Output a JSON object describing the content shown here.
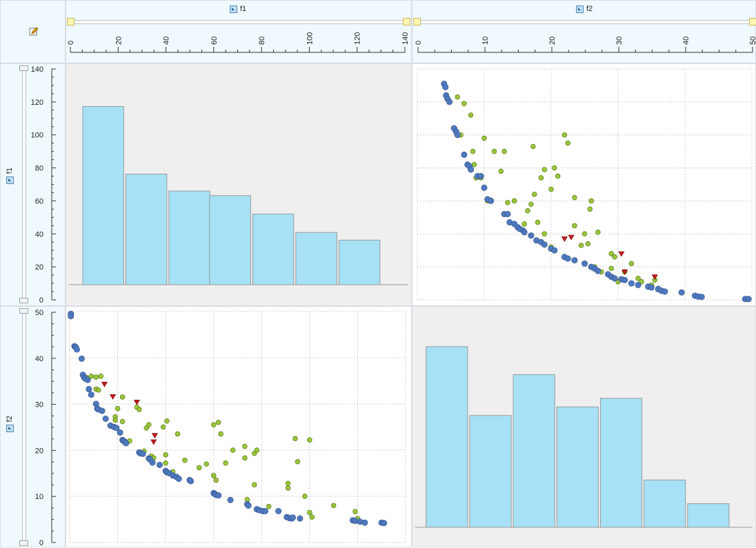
{
  "variables": [
    "f1",
    "f2"
  ],
  "headers": {
    "col1": "f1",
    "col2": "f2",
    "row1": "f1",
    "row2": "f2"
  },
  "icons": {
    "corner": "edit-pencil-icon",
    "variable": "variable-icon"
  },
  "colors": {
    "bar_fill": "#a6e1f5",
    "bar_stroke": "#9a9a9a",
    "blue": "#4f79be",
    "green": "#99c63a",
    "red": "#c02020",
    "hist_bg": "#efefef"
  },
  "chart_data": [
    {
      "type": "bar",
      "panel": "f1 histogram",
      "x": [
        4,
        22,
        40,
        57,
        75,
        93,
        111
      ],
      "values": [
        116,
        72,
        61,
        58,
        46,
        34,
        29
      ],
      "xlim": [
        0,
        140
      ],
      "ylim": [
        0,
        140
      ],
      "yticks": [
        0,
        20,
        40,
        60,
        80,
        100,
        120,
        140
      ],
      "grid": false
    },
    {
      "type": "bar",
      "panel": "f2 histogram",
      "x": [
        1,
        7.5,
        14,
        20.5,
        27,
        33.5,
        40
      ],
      "values": [
        42,
        26,
        35.5,
        28,
        30,
        11,
        5.5
      ],
      "xlim": [
        0,
        50
      ],
      "ylim": [
        0,
        50
      ],
      "yticks": [
        0,
        10,
        20,
        30,
        40,
        50
      ],
      "grid": false
    },
    {
      "type": "scatter",
      "panel": "f1 vs f2",
      "xlim": [
        0,
        140
      ],
      "ylim": [
        0,
        50
      ],
      "xticks": [
        0,
        20,
        40,
        60,
        80,
        100,
        120,
        140
      ],
      "yticks": [
        0,
        10,
        20,
        30,
        40,
        50
      ],
      "grid": true,
      "series": [
        {
          "color": "blue",
          "marker": "circle",
          "points": [
            [
              0.5,
              49.5
            ],
            [
              0.5,
              49
            ],
            [
              2,
              42.5
            ],
            [
              2.5,
              42.3
            ],
            [
              3,
              41.8
            ],
            [
              5,
              39.8
            ],
            [
              5.5,
              36.3
            ],
            [
              6,
              35.8
            ],
            [
              6.5,
              35.5
            ],
            [
              7.5,
              35.2
            ],
            [
              8,
              33.2
            ],
            [
              9,
              32
            ],
            [
              11,
              30
            ],
            [
              11.5,
              29
            ],
            [
              12,
              28.8
            ],
            [
              13.5,
              28.5
            ],
            [
              15,
              26.8
            ],
            [
              17,
              25.3
            ],
            [
              18.5,
              25
            ],
            [
              19.5,
              24.8
            ],
            [
              21,
              23.8
            ],
            [
              22,
              22.2
            ],
            [
              22.5,
              22
            ],
            [
              23,
              21.8
            ],
            [
              23.5,
              21.5
            ],
            [
              29,
              19.5
            ],
            [
              29.5,
              19.3
            ],
            [
              30.5,
              19.2
            ],
            [
              33,
              18.2
            ],
            [
              33.5,
              18
            ],
            [
              34.5,
              17.3
            ],
            [
              37.5,
              16.8
            ],
            [
              40,
              15.5
            ],
            [
              40.5,
              15.2
            ],
            [
              41.5,
              15
            ],
            [
              43,
              14.5
            ],
            [
              44.5,
              14.2
            ],
            [
              45.5,
              13.8
            ],
            [
              50,
              13.5
            ],
            [
              50.5,
              13.3
            ],
            [
              60,
              10.7
            ],
            [
              60.5,
              10.5
            ],
            [
              61,
              10.3
            ],
            [
              62,
              10.2
            ],
            [
              67,
              9.2
            ],
            [
              74,
              8.3
            ],
            [
              74.5,
              8
            ],
            [
              78,
              7.2
            ],
            [
              79,
              7
            ],
            [
              80.5,
              6.8
            ],
            [
              81.5,
              6.8
            ],
            [
              87,
              6.8
            ],
            [
              90.5,
              5.5
            ],
            [
              91.5,
              5.3
            ],
            [
              92.5,
              5.2
            ],
            [
              93,
              5.4
            ],
            [
              96,
              5.2
            ],
            [
              118,
              4.8
            ],
            [
              119,
              4.7
            ],
            [
              121,
              4.5
            ],
            [
              123,
              4.3
            ],
            [
              130,
              4.3
            ],
            [
              131,
              4.2
            ]
          ]
        },
        {
          "color": "green",
          "marker": "circle",
          "points": [
            [
              6,
              36
            ],
            [
              7,
              35.7
            ],
            [
              9,
              36
            ],
            [
              11,
              35.8
            ],
            [
              11,
              33.2
            ],
            [
              12,
              33
            ],
            [
              13,
              36
            ],
            [
              19,
              27.2
            ],
            [
              19,
              26.5
            ],
            [
              20,
              29
            ],
            [
              22,
              31.5
            ],
            [
              22,
              26.2
            ],
            [
              25,
              22
            ],
            [
              28,
              29.3
            ],
            [
              29,
              28.8
            ],
            [
              31,
              19.8
            ],
            [
              32,
              24.8
            ],
            [
              33,
              25.5
            ],
            [
              34,
              18.7
            ],
            [
              35,
              18.3
            ],
            [
              39,
              25
            ],
            [
              40,
              17.2
            ],
            [
              40,
              19
            ],
            [
              40.5,
              26.3
            ],
            [
              43,
              15.3
            ],
            [
              45,
              23.5
            ],
            [
              48,
              17.8
            ],
            [
              54,
              16.2
            ],
            [
              57,
              17
            ],
            [
              60,
              25.5
            ],
            [
              60,
              14.5
            ],
            [
              61,
              13.5
            ],
            [
              62,
              26
            ],
            [
              63,
              23.5
            ],
            [
              65,
              17.2
            ],
            [
              68,
              20
            ],
            [
              73,
              18.3
            ],
            [
              73,
              20.8
            ],
            [
              74,
              9.3
            ],
            [
              77,
              12.5
            ],
            [
              77,
              19.3
            ],
            [
              78,
              20
            ],
            [
              83,
              7.8
            ],
            [
              91,
              12.8
            ],
            [
              91,
              11.8
            ],
            [
              94,
              22.5
            ],
            [
              95,
              17.5
            ],
            [
              98,
              10
            ],
            [
              100,
              22.2
            ],
            [
              100,
              6.5
            ],
            [
              101,
              5.5
            ],
            [
              110,
              8
            ],
            [
              119,
              6.7
            ],
            [
              120,
              5.2
            ]
          ]
        },
        {
          "color": "red",
          "marker": "triangle-down",
          "points": [
            [
              14.5,
              34.3
            ],
            [
              18,
              31.6
            ],
            [
              28,
              30.4
            ],
            [
              35.5,
              23.2
            ],
            [
              35,
              21.8
            ]
          ]
        }
      ]
    },
    {
      "type": "scatter",
      "panel": "f2 vs f1",
      "xlim": [
        0,
        50
      ],
      "ylim": [
        0,
        140
      ],
      "xticks": [
        0,
        10,
        20,
        30,
        40,
        50
      ],
      "yticks": [
        0,
        20,
        40,
        60,
        80,
        100,
        120,
        140
      ],
      "grid": true,
      "series": [
        {
          "color": "blue",
          "marker": "circle",
          "points": [
            [
              4,
              131
            ],
            [
              4.2,
              129
            ],
            [
              4.3,
              124
            ],
            [
              4.5,
              122
            ],
            [
              4.8,
              120
            ],
            [
              5.5,
              104
            ],
            [
              5.8,
              102
            ],
            [
              6,
              100
            ],
            [
              7,
              88
            ],
            [
              7.5,
              82
            ],
            [
              7.8,
              81
            ],
            [
              8,
              79
            ],
            [
              9,
              75
            ],
            [
              9.5,
              75
            ],
            [
              10,
              68
            ],
            [
              10.5,
              61
            ],
            [
              11,
              60
            ],
            [
              13,
              52
            ],
            [
              13.5,
              52
            ],
            [
              13.8,
              47
            ],
            [
              14.5,
              46
            ],
            [
              15,
              44
            ],
            [
              15.3,
              43
            ],
            [
              15.8,
              42
            ],
            [
              16,
              41
            ],
            [
              17,
              39
            ],
            [
              17.8,
              36
            ],
            [
              18.5,
              35
            ],
            [
              19,
              33.5
            ],
            [
              20,
              31
            ],
            [
              20.5,
              30
            ],
            [
              22,
              26
            ],
            [
              22.5,
              25
            ],
            [
              23.5,
              24
            ],
            [
              25,
              22
            ],
            [
              26,
              20
            ],
            [
              26.5,
              19
            ],
            [
              27,
              17.5
            ],
            [
              28.5,
              15.5
            ],
            [
              29,
              14
            ],
            [
              29.5,
              13
            ],
            [
              30.5,
              12.5
            ],
            [
              31,
              12
            ],
            [
              32,
              10
            ],
            [
              33,
              9
            ],
            [
              34.5,
              8
            ],
            [
              35,
              7.5
            ],
            [
              36,
              6.5
            ],
            [
              36.5,
              5.5
            ],
            [
              37,
              5
            ],
            [
              39.5,
              4.5
            ],
            [
              41.5,
              2.5
            ],
            [
              42,
              2
            ],
            [
              42.5,
              1.8
            ],
            [
              49,
              0.5
            ],
            [
              49.5,
              0.5
            ]
          ]
        },
        {
          "color": "green",
          "marker": "circle",
          "points": [
            [
              6,
              123
            ],
            [
              6.5,
              100
            ],
            [
              7,
              119
            ],
            [
              8,
              112
            ],
            [
              8.3,
              90
            ],
            [
              8.5,
              82
            ],
            [
              8.8,
              74
            ],
            [
              9.5,
              74
            ],
            [
              10,
              98
            ],
            [
              10.5,
              60
            ],
            [
              11.5,
              90
            ],
            [
              12.5,
              78
            ],
            [
              13,
              90
            ],
            [
              13.5,
              59
            ],
            [
              14.5,
              60
            ],
            [
              16,
              46
            ],
            [
              16.5,
              54
            ],
            [
              17,
              58
            ],
            [
              17.3,
              93
            ],
            [
              17.5,
              64
            ],
            [
              18,
              47
            ],
            [
              18.5,
              74
            ],
            [
              19,
              79
            ],
            [
              19,
              40
            ],
            [
              20,
              67
            ],
            [
              20,
              32
            ],
            [
              20.5,
              80
            ],
            [
              21,
              75
            ],
            [
              22,
              100
            ],
            [
              22.5,
              95
            ],
            [
              23.5,
              62
            ],
            [
              23.5,
              45
            ],
            [
              24.5,
              33
            ],
            [
              25,
              40
            ],
            [
              25.5,
              34
            ],
            [
              25.8,
              55
            ],
            [
              26,
              60
            ],
            [
              26.5,
              20
            ],
            [
              27,
              41
            ],
            [
              27.5,
              17
            ],
            [
              29,
              19
            ],
            [
              29,
              28
            ],
            [
              29.5,
              26
            ],
            [
              30,
              11
            ],
            [
              31,
              17
            ],
            [
              32,
              22
            ],
            [
              33,
              13
            ],
            [
              33.5,
              11
            ],
            [
              35,
              9
            ],
            [
              35.5,
              12
            ],
            [
              36,
              7
            ]
          ]
        },
        {
          "color": "red",
          "marker": "triangle-down",
          "points": [
            [
              22,
              37
            ],
            [
              23,
              38
            ],
            [
              30.5,
              28
            ],
            [
              31,
              17
            ],
            [
              35.5,
              14
            ]
          ]
        }
      ]
    }
  ]
}
